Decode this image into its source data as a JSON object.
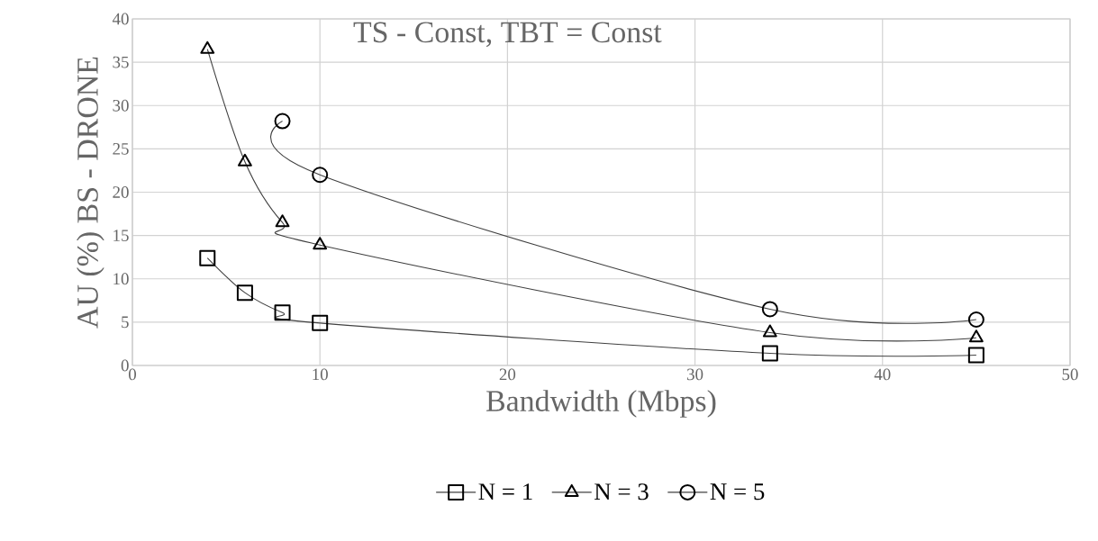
{
  "chart_data": {
    "type": "line",
    "title": "TS - Const, TBT = Const",
    "xlabel": "Bandwidth  (Mbps)",
    "ylabel": "AU (%) BS - DRONE",
    "x": [
      4,
      6,
      8,
      10,
      34,
      45
    ],
    "series": [
      {
        "name": "N = 1",
        "color": "#404040",
        "marker": "square",
        "values": [
          12.4,
          8.4,
          6.1,
          4.9,
          1.4,
          1.2
        ]
      },
      {
        "name": "N = 3",
        "color": "#404040",
        "marker": "triangle",
        "values": [
          36.5,
          23.5,
          16.5,
          13.9,
          3.8,
          3.2
        ]
      },
      {
        "name": "N = 5",
        "color": "#404040",
        "marker": "circle",
        "x": [
          8,
          10,
          34,
          45
        ],
        "values": [
          28.2,
          22.0,
          6.5,
          5.3
        ]
      }
    ],
    "xlim": [
      0,
      50
    ],
    "xticks": [
      0,
      10,
      20,
      30,
      40,
      50
    ],
    "ylim": [
      0,
      40
    ],
    "yticks": [
      0,
      5,
      10,
      15,
      20,
      25,
      30,
      35,
      40
    ],
    "grid": true,
    "legend": "bottom"
  }
}
